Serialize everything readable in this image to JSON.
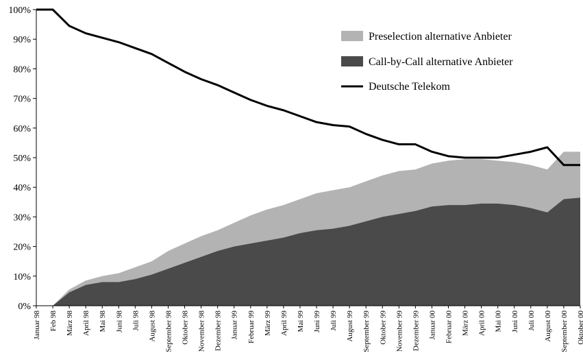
{
  "chart_data": {
    "type": "area",
    "title": "",
    "xlabel": "",
    "ylabel": "",
    "ylim": [
      0,
      100
    ],
    "grid": false,
    "legend_position": "top-right",
    "yticks": [
      "0%",
      "10%",
      "20%",
      "30%",
      "40%",
      "50%",
      "60%",
      "70%",
      "80%",
      "90%",
      "100%"
    ],
    "categories": [
      "Januar 98",
      "Feb 98",
      "März 98",
      "April 98",
      "Mai 98",
      "Juni 98",
      "Juli 98",
      "August 98",
      "September 98",
      "Oktober 98",
      "November 98",
      "Dezember 98",
      "Januar 99",
      "Februar 99",
      "März 99",
      "April 99",
      "Mai 99",
      "Juni 99",
      "Juli 99",
      "August 99",
      "September 99",
      "Oktober 99",
      "November 99",
      "Dezember 99",
      "Januar 00",
      "Februar 00",
      "März 00",
      "April 00",
      "Mai 00",
      "Juni 00",
      "Juli 00",
      "August 00",
      "September 00",
      "Oktober 00"
    ],
    "series": [
      {
        "name": "Preselection alternative Anbieter",
        "kind": "stacked-area-top",
        "color": "#b3b3b3",
        "values": [
          0,
          0,
          5.5,
          8.5,
          10,
          11,
          13,
          15,
          18.5,
          21,
          23.5,
          25.5,
          28,
          30.5,
          32.5,
          34,
          36,
          38,
          39,
          40,
          42,
          44,
          45.5,
          46,
          48,
          49,
          49.5,
          49.5,
          49,
          48.5,
          47.5,
          46,
          52,
          52
        ]
      },
      {
        "name": "Call-by-Call alternative Anbieter",
        "kind": "stacked-area-bottom",
        "color": "#4a4a4a",
        "values": [
          0,
          0,
          4.5,
          7,
          8,
          8,
          9,
          10.5,
          12.5,
          14.5,
          16.5,
          18.5,
          20,
          21,
          22,
          23,
          24.5,
          25.5,
          26,
          27,
          28.5,
          30,
          31,
          32,
          33.5,
          34,
          34,
          34.5,
          34.5,
          34,
          33,
          31.5,
          36,
          36.5
        ]
      },
      {
        "name": "Deutsche Telekom",
        "kind": "line",
        "color": "#000000",
        "values": [
          100,
          100,
          94.5,
          92,
          90.5,
          89,
          87,
          85,
          82,
          79,
          76.5,
          74.5,
          72,
          69.5,
          67.5,
          66,
          64,
          62,
          61,
          60.5,
          58,
          56,
          54.5,
          54.5,
          52,
          50.5,
          50,
          50,
          50,
          51,
          52,
          53.5,
          47.5,
          47.5
        ]
      }
    ]
  }
}
